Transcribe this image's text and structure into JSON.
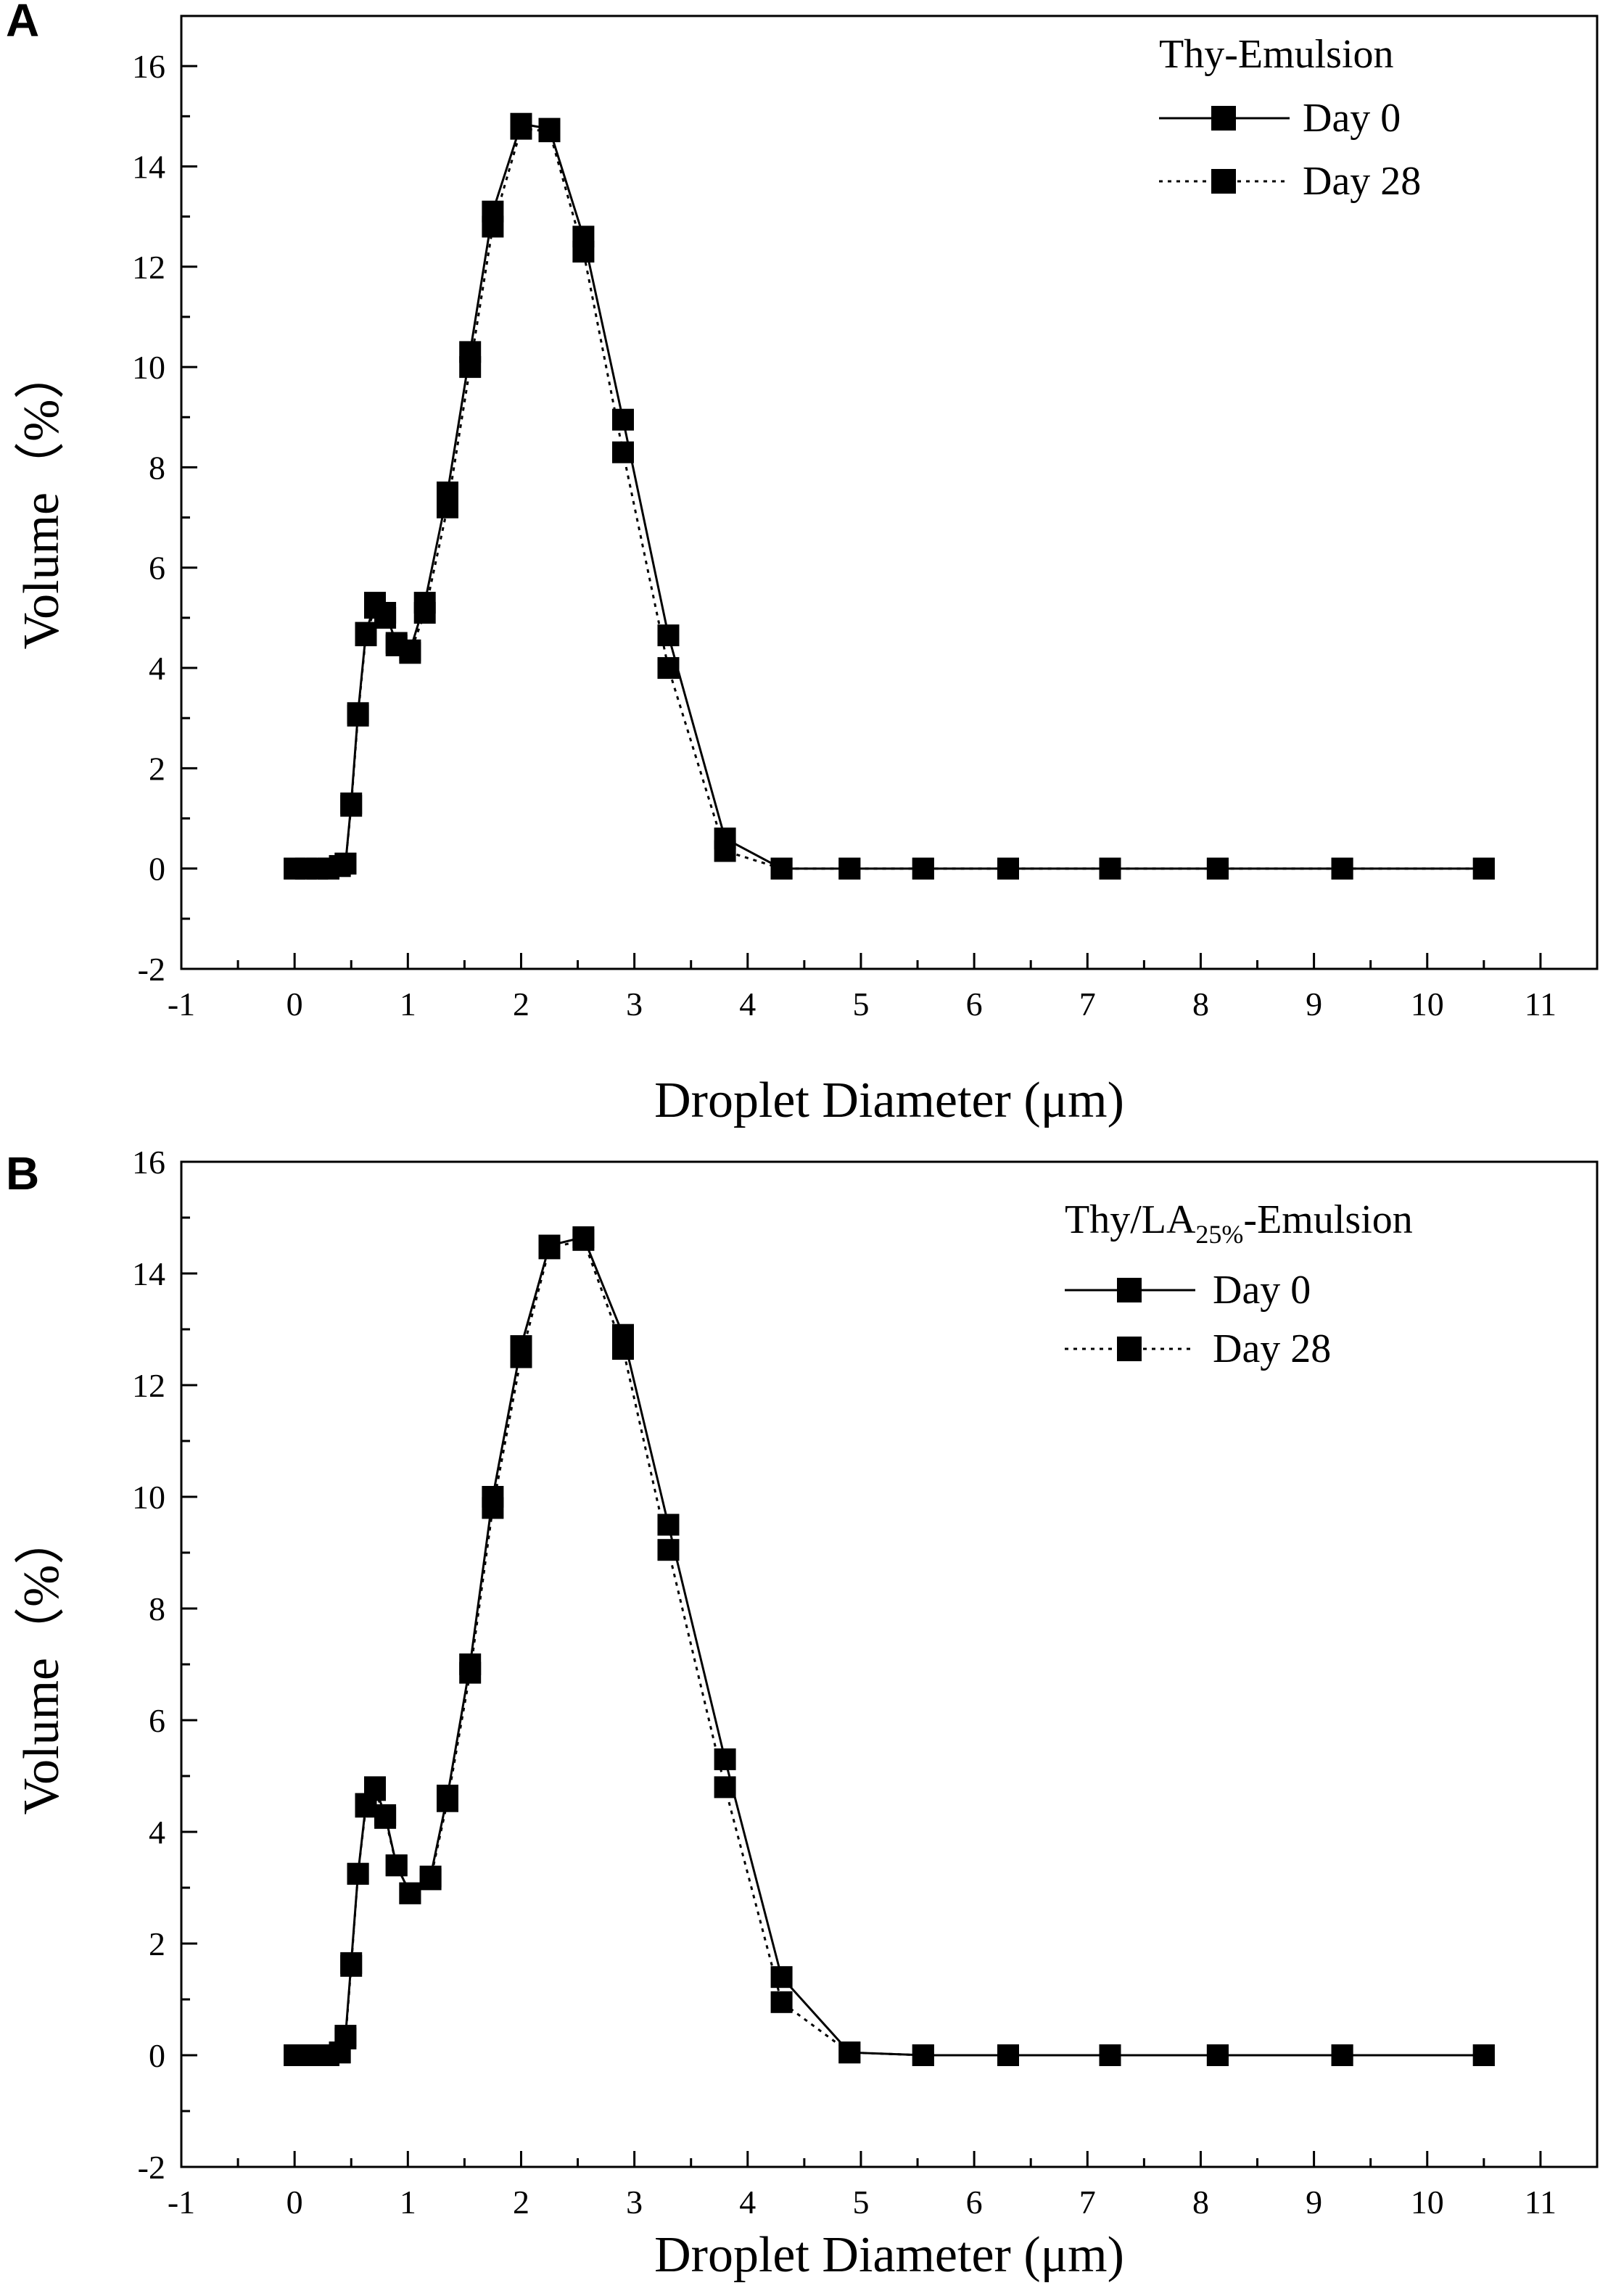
{
  "chart_data": [
    {
      "panel": "A",
      "type": "line",
      "xlabel": "Droplet Diameter (μm)",
      "ylabel": "Volume（%）",
      "xlim": [
        -1,
        11.5
      ],
      "ylim": [
        -2,
        17
      ],
      "xticks": [
        -1,
        0,
        1,
        2,
        3,
        4,
        5,
        6,
        7,
        8,
        9,
        10,
        11
      ],
      "yticks": [
        -2,
        0,
        2,
        4,
        6,
        8,
        10,
        12,
        14,
        16
      ],
      "legend_title": "Thy-Emulsion",
      "legend_title_sub": "",
      "legend_title_suffix": "",
      "series": [
        {
          "name": "Day 0",
          "style": "solid",
          "x": [
            0.0,
            0.1,
            0.2,
            0.3,
            0.4,
            0.45,
            0.5,
            0.56,
            0.63,
            0.71,
            0.8,
            0.9,
            1.02,
            1.15,
            1.35,
            1.55,
            1.75,
            2.0,
            2.25,
            2.55,
            2.9,
            3.3,
            3.8,
            4.3,
            4.9,
            5.55,
            6.3,
            7.2,
            8.15,
            9.25,
            10.5
          ],
          "values": [
            0,
            0,
            0,
            0,
            0.05,
            0.1,
            1.3,
            3.1,
            4.7,
            5.3,
            5.1,
            4.5,
            4.35,
            5.3,
            7.5,
            10.3,
            13.1,
            14.85,
            14.75,
            12.6,
            8.95,
            4.65,
            0.6,
            0,
            0,
            0,
            0,
            0,
            0,
            0,
            0
          ]
        },
        {
          "name": "Day 28",
          "style": "dotted",
          "x": [
            0.0,
            0.1,
            0.2,
            0.3,
            0.4,
            0.45,
            0.5,
            0.56,
            0.63,
            0.71,
            0.8,
            0.9,
            1.02,
            1.15,
            1.35,
            1.55,
            1.75,
            2.0,
            2.25,
            2.55,
            2.9,
            3.3,
            3.8,
            4.3,
            4.9,
            5.55,
            6.3,
            7.2,
            8.15,
            9.25,
            10.5
          ],
          "values": [
            0,
            0,
            0,
            0,
            0.05,
            0.1,
            1.25,
            3.05,
            4.65,
            5.2,
            5.0,
            4.45,
            4.3,
            5.1,
            7.2,
            10.0,
            12.8,
            14.75,
            14.7,
            12.3,
            8.3,
            4.0,
            0.35,
            0,
            0,
            0,
            0,
            0,
            0,
            0,
            0
          ]
        }
      ]
    },
    {
      "panel": "B",
      "type": "line",
      "xlabel": "Droplet Diameter (μm)",
      "ylabel": "Volume（%）",
      "xlim": [
        -1,
        11.5
      ],
      "ylim": [
        -2,
        16
      ],
      "xticks": [
        -1,
        0,
        1,
        2,
        3,
        4,
        5,
        6,
        7,
        8,
        9,
        10,
        11
      ],
      "yticks": [
        -2,
        0,
        2,
        4,
        6,
        8,
        10,
        12,
        14,
        16
      ],
      "legend_title": "Thy/LA",
      "legend_title_sub": "25%",
      "legend_title_suffix": "-Emulsion",
      "series": [
        {
          "name": "Day 0",
          "style": "solid",
          "x": [
            0.0,
            0.1,
            0.2,
            0.3,
            0.4,
            0.45,
            0.5,
            0.56,
            0.63,
            0.71,
            0.8,
            0.9,
            1.02,
            1.2,
            1.35,
            1.55,
            1.75,
            2.0,
            2.25,
            2.55,
            2.9,
            3.3,
            3.8,
            4.3,
            4.9,
            5.55,
            6.3,
            7.2,
            8.15,
            9.25,
            10.5
          ],
          "values": [
            0,
            0,
            0,
            0,
            0.05,
            0.35,
            1.65,
            3.25,
            4.5,
            4.8,
            4.3,
            3.4,
            2.9,
            3.2,
            4.65,
            7.0,
            10.0,
            12.7,
            14.5,
            14.65,
            12.9,
            9.5,
            5.3,
            1.4,
            0.05,
            0,
            0,
            0,
            0,
            0,
            0
          ]
        },
        {
          "name": "Day 28",
          "style": "dotted",
          "x": [
            0.0,
            0.1,
            0.2,
            0.3,
            0.4,
            0.45,
            0.5,
            0.56,
            0.63,
            0.71,
            0.8,
            0.9,
            1.02,
            1.2,
            1.35,
            1.55,
            1.75,
            2.0,
            2.25,
            2.55,
            2.9,
            3.3,
            3.8,
            4.3,
            4.9,
            5.55,
            6.3,
            7.2,
            8.15,
            9.25,
            10.5
          ],
          "values": [
            0,
            0,
            0,
            0,
            0.05,
            0.3,
            1.6,
            3.25,
            4.45,
            4.75,
            4.25,
            3.4,
            2.9,
            3.15,
            4.55,
            6.85,
            9.8,
            12.5,
            14.45,
            14.6,
            12.65,
            9.05,
            4.8,
            0.95,
            0.05,
            0,
            0,
            0,
            0,
            0,
            0
          ]
        }
      ]
    }
  ]
}
